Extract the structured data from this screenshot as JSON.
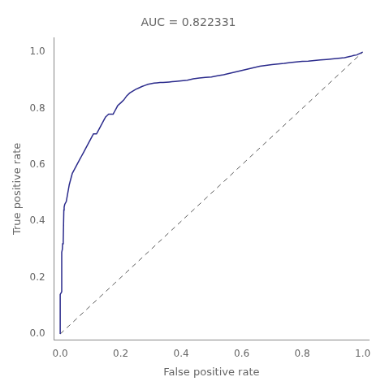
{
  "chart_data": {
    "type": "line",
    "title": "AUC = 0.822331",
    "x_label": "False positive rate",
    "y_label": "True positive rate",
    "series": [
      {
        "color": "#2b2b8c",
        "line_style": "solid",
        "x": [
          0.0,
          0.0,
          0.0,
          0.0,
          0.0,
          0.005,
          0.005,
          0.007,
          0.008,
          0.01,
          0.012,
          0.013,
          0.015,
          0.02,
          0.025,
          0.03,
          0.035,
          0.04,
          0.045,
          0.05,
          0.055,
          0.06,
          0.065,
          0.07,
          0.075,
          0.08,
          0.085,
          0.09,
          0.095,
          0.1,
          0.105,
          0.11,
          0.115,
          0.12,
          0.125,
          0.13,
          0.135,
          0.14,
          0.145,
          0.15,
          0.155,
          0.16,
          0.165,
          0.17,
          0.175,
          0.18,
          0.185,
          0.19,
          0.2,
          0.21,
          0.22,
          0.23,
          0.24,
          0.25,
          0.26,
          0.27,
          0.28,
          0.29,
          0.3,
          0.31,
          0.32,
          0.33,
          0.34,
          0.35,
          0.36,
          0.37,
          0.38,
          0.4,
          0.42,
          0.44,
          0.46,
          0.48,
          0.5,
          0.52,
          0.54,
          0.56,
          0.58,
          0.6,
          0.62,
          0.64,
          0.66,
          0.68,
          0.7,
          0.72,
          0.74,
          0.76,
          0.78,
          0.8,
          0.82,
          0.84,
          0.86,
          0.88,
          0.9,
          0.92,
          0.94,
          0.96,
          0.97,
          0.98,
          0.99,
          1.0
        ],
        "values": [
          0.0,
          0.02,
          0.05,
          0.1,
          0.14,
          0.15,
          0.29,
          0.3,
          0.32,
          0.33,
          0.44,
          0.45,
          0.46,
          0.47,
          0.5,
          0.53,
          0.55,
          0.57,
          0.58,
          0.59,
          0.6,
          0.61,
          0.62,
          0.63,
          0.64,
          0.65,
          0.66,
          0.67,
          0.68,
          0.69,
          0.7,
          0.71,
          0.71,
          0.71,
          0.72,
          0.73,
          0.74,
          0.75,
          0.76,
          0.77,
          0.775,
          0.78,
          0.78,
          0.78,
          0.78,
          0.79,
          0.8,
          0.81,
          0.82,
          0.83,
          0.845,
          0.855,
          0.862,
          0.868,
          0.873,
          0.878,
          0.882,
          0.886,
          0.888,
          0.89,
          0.891,
          0.892,
          0.892,
          0.893,
          0.894,
          0.895,
          0.896,
          0.898,
          0.9,
          0.905,
          0.908,
          0.91,
          0.912,
          0.916,
          0.92,
          0.925,
          0.93,
          0.935,
          0.94,
          0.945,
          0.95,
          0.953,
          0.956,
          0.958,
          0.96,
          0.963,
          0.965,
          0.967,
          0.968,
          0.97,
          0.972,
          0.974,
          0.976,
          0.978,
          0.98,
          0.985,
          0.988,
          0.99,
          0.995,
          1.0
        ]
      },
      {
        "color": "#555555",
        "line_style": "dashed",
        "x": [
          0,
          1
        ],
        "values": [
          0,
          1
        ]
      }
    ],
    "xlim": [
      -0.02,
      1.02
    ],
    "ylim": [
      -0.02,
      1.05
    ],
    "xticks": [
      {
        "value": 0.0,
        "label": "0.0"
      },
      0.2,
      0.4,
      0.6,
      0.8,
      {
        "value": 1.0,
        "label": "1.0"
      }
    ],
    "yticks": [
      {
        "value": 0.0,
        "label": "0.0"
      },
      0.2,
      0.4,
      0.6,
      0.8,
      {
        "value": 1.0,
        "label": "1.0"
      }
    ],
    "grid": false
  }
}
